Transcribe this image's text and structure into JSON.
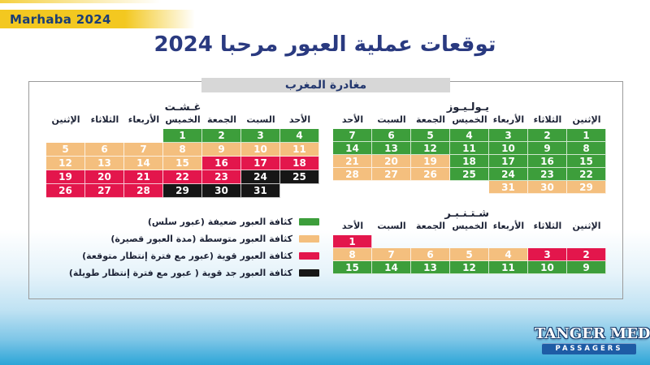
{
  "banner": {
    "label": "Marhaba 2024"
  },
  "page": {
    "title": "توقعات عملية العبور مرحبا 2024",
    "section_label": "مغادرة المغرب"
  },
  "colors": {
    "g": "#3d9e3b",
    "o": "#f4bf7e",
    "r": "#e3164c",
    "k": "#161616"
  },
  "theme": {
    "navy": "#2a3a80",
    "dark_text": "#1c2235",
    "banner_yellow": "#f3c820",
    "label_bg": "#d7d7d7",
    "logo_bar_blue": "#1e5ca5",
    "bottom_blue": "#2ca5d7",
    "box_border": "#9b9b9b"
  },
  "calendars": [
    {
      "id": "august",
      "month": "غـشـت",
      "weekdays": [
        "الإثنين",
        "الثلاثاء",
        "الأربعاء",
        "الخميس",
        "الجمعة",
        "السبت",
        "الأحد"
      ],
      "rows": [
        [
          {
            "v": "",
            "c": ""
          },
          {
            "v": "",
            "c": ""
          },
          {
            "v": "",
            "c": ""
          },
          {
            "v": "1",
            "c": "g"
          },
          {
            "v": "2",
            "c": "g"
          },
          {
            "v": "3",
            "c": "g"
          },
          {
            "v": "4",
            "c": "g"
          }
        ],
        [
          {
            "v": "5",
            "c": "o"
          },
          {
            "v": "6",
            "c": "o"
          },
          {
            "v": "7",
            "c": "o"
          },
          {
            "v": "8",
            "c": "o"
          },
          {
            "v": "9",
            "c": "o"
          },
          {
            "v": "10",
            "c": "o"
          },
          {
            "v": "11",
            "c": "o"
          }
        ],
        [
          {
            "v": "12",
            "c": "o"
          },
          {
            "v": "13",
            "c": "o"
          },
          {
            "v": "14",
            "c": "o"
          },
          {
            "v": "15",
            "c": "o"
          },
          {
            "v": "16",
            "c": "r"
          },
          {
            "v": "17",
            "c": "r"
          },
          {
            "v": "18",
            "c": "r"
          }
        ],
        [
          {
            "v": "19",
            "c": "r"
          },
          {
            "v": "20",
            "c": "r"
          },
          {
            "v": "21",
            "c": "r"
          },
          {
            "v": "22",
            "c": "r"
          },
          {
            "v": "23",
            "c": "r"
          },
          {
            "v": "24",
            "c": "k"
          },
          {
            "v": "25",
            "c": "k"
          }
        ],
        [
          {
            "v": "26",
            "c": "r"
          },
          {
            "v": "27",
            "c": "r"
          },
          {
            "v": "28",
            "c": "r"
          },
          {
            "v": "29",
            "c": "k"
          },
          {
            "v": "30",
            "c": "k"
          },
          {
            "v": "31",
            "c": "k"
          },
          {
            "v": "",
            "c": ""
          }
        ]
      ]
    },
    {
      "id": "july",
      "month": "يـولـيـوز",
      "weekdays": [
        "الأحد",
        "السبت",
        "الجمعة",
        "الخميس",
        "الأربعاء",
        "الثلاثاء",
        "الإثنين"
      ],
      "rows": [
        [
          {
            "v": "7",
            "c": "g"
          },
          {
            "v": "6",
            "c": "g"
          },
          {
            "v": "5",
            "c": "g"
          },
          {
            "v": "4",
            "c": "g"
          },
          {
            "v": "3",
            "c": "g"
          },
          {
            "v": "2",
            "c": "g"
          },
          {
            "v": "1",
            "c": "g"
          }
        ],
        [
          {
            "v": "14",
            "c": "g"
          },
          {
            "v": "13",
            "c": "g"
          },
          {
            "v": "12",
            "c": "g"
          },
          {
            "v": "11",
            "c": "g"
          },
          {
            "v": "10",
            "c": "g"
          },
          {
            "v": "9",
            "c": "g"
          },
          {
            "v": "8",
            "c": "g"
          }
        ],
        [
          {
            "v": "21",
            "c": "o"
          },
          {
            "v": "20",
            "c": "o"
          },
          {
            "v": "19",
            "c": "o"
          },
          {
            "v": "18",
            "c": "g"
          },
          {
            "v": "17",
            "c": "g"
          },
          {
            "v": "16",
            "c": "g"
          },
          {
            "v": "15",
            "c": "g"
          }
        ],
        [
          {
            "v": "28",
            "c": "o"
          },
          {
            "v": "27",
            "c": "o"
          },
          {
            "v": "26",
            "c": "o"
          },
          {
            "v": "25",
            "c": "g"
          },
          {
            "v": "24",
            "c": "g"
          },
          {
            "v": "23",
            "c": "g"
          },
          {
            "v": "22",
            "c": "g"
          }
        ],
        [
          {
            "v": "",
            "c": ""
          },
          {
            "v": "",
            "c": ""
          },
          {
            "v": "",
            "c": ""
          },
          {
            "v": "",
            "c": ""
          },
          {
            "v": "31",
            "c": "o"
          },
          {
            "v": "30",
            "c": "o"
          },
          {
            "v": "29",
            "c": "o"
          }
        ]
      ]
    },
    {
      "id": "september",
      "month": "شـتـنـبـر",
      "weekdays": [
        "الأحد",
        "السبت",
        "الجمعة",
        "الخميس",
        "الأربعاء",
        "الثلاثاء",
        "الإثنين"
      ],
      "rows": [
        [
          {
            "v": "1",
            "c": "r"
          },
          {
            "v": "",
            "c": ""
          },
          {
            "v": "",
            "c": ""
          },
          {
            "v": "",
            "c": ""
          },
          {
            "v": "",
            "c": ""
          },
          {
            "v": "",
            "c": ""
          },
          {
            "v": "",
            "c": ""
          }
        ],
        [
          {
            "v": "8",
            "c": "o"
          },
          {
            "v": "7",
            "c": "o"
          },
          {
            "v": "6",
            "c": "o"
          },
          {
            "v": "5",
            "c": "o"
          },
          {
            "v": "4",
            "c": "o"
          },
          {
            "v": "3",
            "c": "r"
          },
          {
            "v": "2",
            "c": "r"
          }
        ],
        [
          {
            "v": "15",
            "c": "g"
          },
          {
            "v": "14",
            "c": "g"
          },
          {
            "v": "13",
            "c": "g"
          },
          {
            "v": "12",
            "c": "g"
          },
          {
            "v": "11",
            "c": "g"
          },
          {
            "v": "10",
            "c": "g"
          },
          {
            "v": "9",
            "c": "g"
          }
        ]
      ]
    }
  ],
  "legend": [
    {
      "color": "g",
      "label": "كثافة العبور ضعيفة (عبور سلس)"
    },
    {
      "color": "o",
      "label": "كثافة العبور متوسطة (مدة العبور قصيرة)"
    },
    {
      "color": "r",
      "label": "كثافة العبور قوية (عبور مع فترة إنتظار متوقعة)"
    },
    {
      "color": "k",
      "label": "كثافة العبور جد قوية ( عبور مع فترة إنتظار طويلة)"
    }
  ],
  "logo": {
    "name": "TANGER MED",
    "tagline": "PASSAGERS"
  }
}
